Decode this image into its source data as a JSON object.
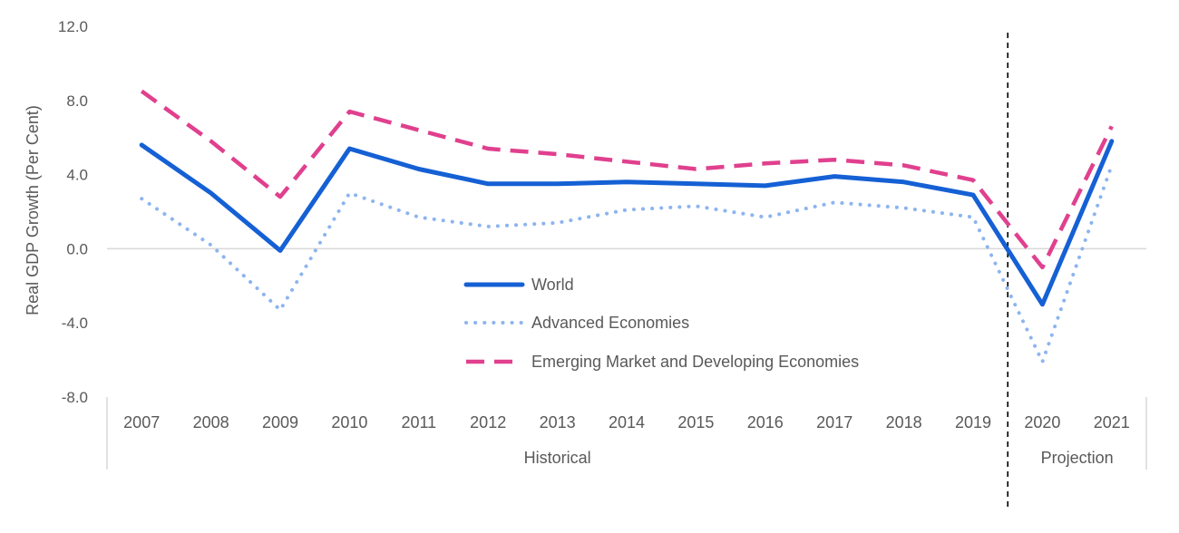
{
  "chart_data": {
    "type": "line",
    "ylabel": "Real GDP Growth (Per Cent)",
    "ylim": [
      -8,
      12
    ],
    "yticks": [
      -8,
      -4,
      0,
      4,
      8,
      12
    ],
    "ytick_labels": [
      "-8.0",
      "-4.0",
      "0.0",
      "4.0",
      "8.0",
      "12.0"
    ],
    "categories": [
      "2007",
      "2008",
      "2009",
      "2010",
      "2011",
      "2012",
      "2013",
      "2014",
      "2015",
      "2016",
      "2017",
      "2018",
      "2019",
      "2020",
      "2021"
    ],
    "groups": [
      {
        "label": "Historical",
        "from": "2007",
        "to": "2019"
      },
      {
        "label": "Projection",
        "from": "2020",
        "to": "2021"
      }
    ],
    "grid": false,
    "legend_position": "center",
    "series": [
      {
        "name": "World",
        "style": "solid",
        "color": "#1560d4",
        "values": [
          5.6,
          3.0,
          -0.1,
          5.4,
          4.3,
          3.5,
          3.5,
          3.6,
          3.5,
          3.4,
          3.9,
          3.6,
          2.9,
          -3.0,
          5.8
        ]
      },
      {
        "name": "Advanced Economies",
        "style": "dotted",
        "color": "#8db4ef",
        "values": [
          2.7,
          0.2,
          -3.3,
          3.0,
          1.7,
          1.2,
          1.4,
          2.1,
          2.3,
          1.7,
          2.5,
          2.2,
          1.7,
          -6.1,
          4.5
        ]
      },
      {
        "name": "Emerging Market and Developing Economies",
        "style": "dashed",
        "color": "#e0408e",
        "values": [
          8.5,
          5.8,
          2.8,
          7.4,
          6.4,
          5.4,
          5.1,
          4.7,
          4.3,
          4.6,
          4.8,
          4.5,
          3.7,
          -1.0,
          6.6
        ]
      }
    ]
  }
}
